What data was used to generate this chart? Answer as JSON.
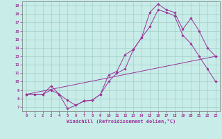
{
  "xlabel": "Windchill (Refroidissement éolien,°C)",
  "background_color": "#c8ece8",
  "line_color": "#993399",
  "grid_color": "#a0d0c8",
  "xlim": [
    -0.5,
    23.5
  ],
  "ylim": [
    6.5,
    19.5
  ],
  "xticks": [
    0,
    1,
    2,
    3,
    4,
    5,
    6,
    7,
    8,
    9,
    10,
    11,
    12,
    13,
    14,
    15,
    16,
    17,
    18,
    19,
    20,
    21,
    22,
    23
  ],
  "yticks": [
    7,
    8,
    9,
    10,
    11,
    12,
    13,
    14,
    15,
    16,
    17,
    18,
    19
  ],
  "line1_x": [
    0,
    1,
    2,
    3,
    4,
    5,
    6,
    7,
    8,
    9,
    10,
    11,
    12,
    13,
    14,
    15,
    16,
    17,
    18,
    19,
    20,
    21,
    22,
    23
  ],
  "line1_y": [
    8.5,
    8.5,
    8.5,
    9.0,
    8.5,
    6.8,
    7.2,
    7.7,
    7.8,
    8.5,
    10.8,
    11.2,
    13.2,
    13.8,
    15.2,
    18.2,
    19.2,
    18.5,
    18.2,
    16.2,
    17.5,
    16.0,
    14.0,
    13.0
  ],
  "line2_x": [
    0,
    1,
    2,
    3,
    4,
    5,
    6,
    7,
    8,
    9,
    10,
    11,
    12,
    13,
    14,
    15,
    16,
    17,
    18,
    19,
    20,
    21,
    22,
    23
  ],
  "line2_y": [
    8.5,
    8.5,
    8.5,
    9.5,
    8.5,
    7.8,
    7.2,
    7.7,
    7.8,
    8.5,
    10.0,
    11.0,
    11.5,
    13.8,
    15.2,
    16.5,
    18.5,
    18.2,
    17.8,
    15.5,
    14.5,
    13.0,
    11.5,
    10.0
  ],
  "line3_x": [
    0,
    23
  ],
  "line3_y": [
    8.5,
    13.0
  ],
  "marker": "D",
  "markersize": 1.8,
  "linewidth": 0.7,
  "tick_fontsize": 4.0,
  "xlabel_fontsize": 5.0
}
